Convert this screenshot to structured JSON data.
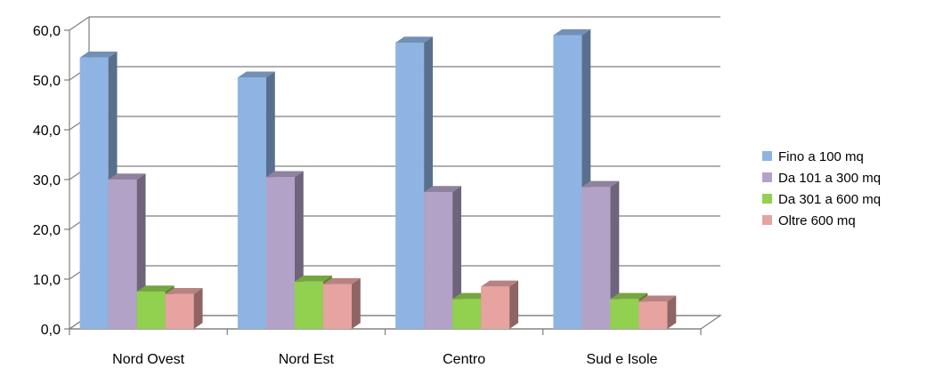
{
  "chart_data": {
    "type": "bar",
    "title": "",
    "xlabel": "",
    "ylabel": "",
    "categories": [
      "Nord Ovest",
      "Nord Est",
      "Centro",
      "Sud e Isole"
    ],
    "series": [
      {
        "name": "Fino a 100 mq",
        "values": [
          54.5,
          50.5,
          57.5,
          59.0
        ],
        "color": "#8EB4E3"
      },
      {
        "name": "Da 101 a 300 mq",
        "values": [
          30.0,
          30.5,
          27.5,
          28.5
        ],
        "color": "#B3A2C7"
      },
      {
        "name": "Da 301 a 600 mq",
        "values": [
          7.5,
          9.5,
          6.0,
          6.0
        ],
        "color": "#92D050"
      },
      {
        "name": "Oltre 600 mq",
        "values": [
          7.0,
          9.0,
          8.5,
          5.5
        ],
        "color": "#E6A3A0"
      }
    ],
    "yticks": [
      "0,0",
      "10,0",
      "20,0",
      "30,0",
      "40,0",
      "50,0",
      "60,0"
    ],
    "ylim": [
      0,
      60
    ],
    "grid": true,
    "legend_position": "right"
  }
}
